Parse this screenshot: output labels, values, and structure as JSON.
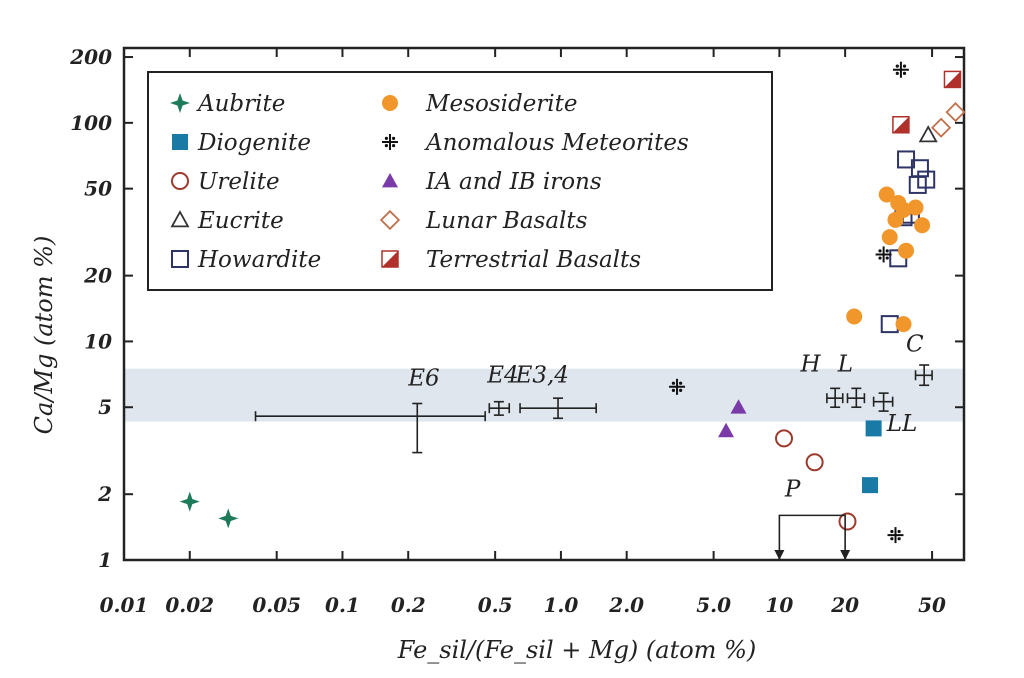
{
  "chart_data": {
    "type": "scatter",
    "xlabel": "Fe_sil/(Fe_sil + Mg) (atom %)",
    "ylabel": "Ca/Mg (atom %)",
    "x_scale": "log",
    "y_scale": "log",
    "xlim": [
      0.01,
      70
    ],
    "ylim": [
      1,
      220
    ],
    "x_ticks": [
      0.01,
      0.02,
      0.05,
      0.1,
      0.2,
      0.5,
      1.0,
      2.0,
      5.0,
      10,
      20,
      50
    ],
    "x_tick_labels": [
      "0.01",
      "0.02",
      "0.05",
      "0.1",
      "0.2",
      "0.5",
      "1.0",
      "2.0",
      "5.0",
      "10",
      "20",
      "50"
    ],
    "y_ticks": [
      1,
      2,
      5,
      10,
      20,
      50,
      100,
      200
    ],
    "y_tick_labels": [
      "1",
      "2",
      "5",
      "10",
      "20",
      "50",
      "100",
      "200"
    ],
    "band": {
      "ymin": 4.3,
      "ymax": 7.5,
      "color": "#dfe6ee"
    },
    "legend_position": "top-left",
    "legend": [
      {
        "label": "Aubrite",
        "marker": "star4",
        "color": "#1e7b5a"
      },
      {
        "label": "Diogenite",
        "marker": "square-filled",
        "color": "#1a7aa6"
      },
      {
        "label": "Urelite",
        "marker": "circle-open",
        "color": "#9c3a2c"
      },
      {
        "label": "Eucrite",
        "marker": "triangle-open",
        "color": "#333333"
      },
      {
        "label": "Howardite",
        "marker": "square-open",
        "color": "#2e3566"
      },
      {
        "label": "Mesosiderite",
        "marker": "circle-filled",
        "color": "#f0962a"
      },
      {
        "label": "Anomalous Meteorites",
        "marker": "plus-dotted",
        "color": "#111111"
      },
      {
        "label": "IA and IB irons",
        "marker": "triangle-filled",
        "color": "#7a3aa8"
      },
      {
        "label": "Lunar Basalts",
        "marker": "diamond-open",
        "color": "#c0704a"
      },
      {
        "label": "Terrestrial Basalts",
        "marker": "half-square",
        "color": "#b0302a"
      }
    ],
    "series": [
      {
        "name": "Aubrite",
        "points": [
          [
            0.02,
            1.85
          ],
          [
            0.03,
            1.55
          ]
        ]
      },
      {
        "name": "Diogenite",
        "points": [
          [
            27,
            4.0
          ],
          [
            26,
            2.2
          ]
        ]
      },
      {
        "name": "Urelite",
        "points": [
          [
            10.5,
            3.6
          ],
          [
            14.5,
            2.8
          ],
          [
            20.5,
            1.5
          ]
        ]
      },
      {
        "name": "Eucrite",
        "points": [
          [
            48,
            88
          ]
        ]
      },
      {
        "name": "Howardite",
        "points": [
          [
            38,
            68
          ],
          [
            44,
            62
          ],
          [
            47,
            55
          ],
          [
            43,
            52
          ],
          [
            40,
            38
          ],
          [
            37,
            37
          ],
          [
            35,
            24
          ],
          [
            32,
            12
          ]
        ]
      },
      {
        "name": "Mesosiderite",
        "points": [
          [
            31,
            47
          ],
          [
            35,
            43
          ],
          [
            37,
            40
          ],
          [
            42,
            41
          ],
          [
            34,
            36
          ],
          [
            45,
            34
          ],
          [
            32,
            30
          ],
          [
            38,
            26
          ],
          [
            22,
            13
          ],
          [
            37,
            12
          ]
        ]
      },
      {
        "name": "Anomalous Meteorites",
        "points": [
          [
            36,
            175
          ],
          [
            3.4,
            6.2
          ],
          [
            30,
            25
          ],
          [
            34,
            1.3
          ]
        ]
      },
      {
        "name": "IA and IB irons",
        "points": [
          [
            6.5,
            5.0
          ],
          [
            5.7,
            3.9
          ]
        ]
      },
      {
        "name": "Lunar Basalts",
        "points": [
          [
            64,
            112
          ],
          [
            55,
            95
          ]
        ]
      },
      {
        "name": "Terrestrial Basalts",
        "points": [
          [
            62,
            158
          ],
          [
            36,
            98
          ]
        ]
      }
    ],
    "error_bars": [
      {
        "label": "E6",
        "x": 0.22,
        "y": 4.55,
        "xmin": 0.04,
        "xmax": 0.45,
        "ymin": 3.1,
        "ymax": 5.2,
        "label_x": 0.2,
        "label_y": 6.3
      },
      {
        "label": "E4",
        "x": 0.52,
        "y": 4.95,
        "xmin": 0.47,
        "xmax": 0.58,
        "ymin": 4.6,
        "ymax": 5.3,
        "label_x": 0.46,
        "label_y": 6.5
      },
      {
        "label": "E3,4",
        "x": 0.97,
        "y": 4.95,
        "xmin": 0.65,
        "xmax": 1.45,
        "ymin": 4.45,
        "ymax": 5.5,
        "label_x": 0.62,
        "label_y": 6.5
      },
      {
        "label": "H",
        "x": 18,
        "y": 5.5,
        "xmin": 16.5,
        "xmax": 19.5,
        "ymin": 5.0,
        "ymax": 6.1,
        "label_x": 12.5,
        "label_y": 7.3
      },
      {
        "label": "L",
        "x": 22.5,
        "y": 5.5,
        "xmin": 20.5,
        "xmax": 24.5,
        "ymin": 5.0,
        "ymax": 6.1,
        "label_x": 18.5,
        "label_y": 7.3
      },
      {
        "label": "LL",
        "x": 30,
        "y": 5.3,
        "xmin": 27,
        "xmax": 33,
        "ymin": 4.8,
        "ymax": 5.8,
        "label_x": 31,
        "label_y": 3.9
      },
      {
        "label": "C",
        "x": 46,
        "y": 7.0,
        "xmin": 42,
        "xmax": 50,
        "ymin": 6.3,
        "ymax": 7.8,
        "label_x": 38,
        "label_y": 9.0
      }
    ],
    "annotations": [
      {
        "text": "P",
        "x": 11.5,
        "y": 1.95,
        "bracket": {
          "x1": 10,
          "x2": 20,
          "ytop": 1.6,
          "ybottom": 1.0
        }
      }
    ]
  }
}
